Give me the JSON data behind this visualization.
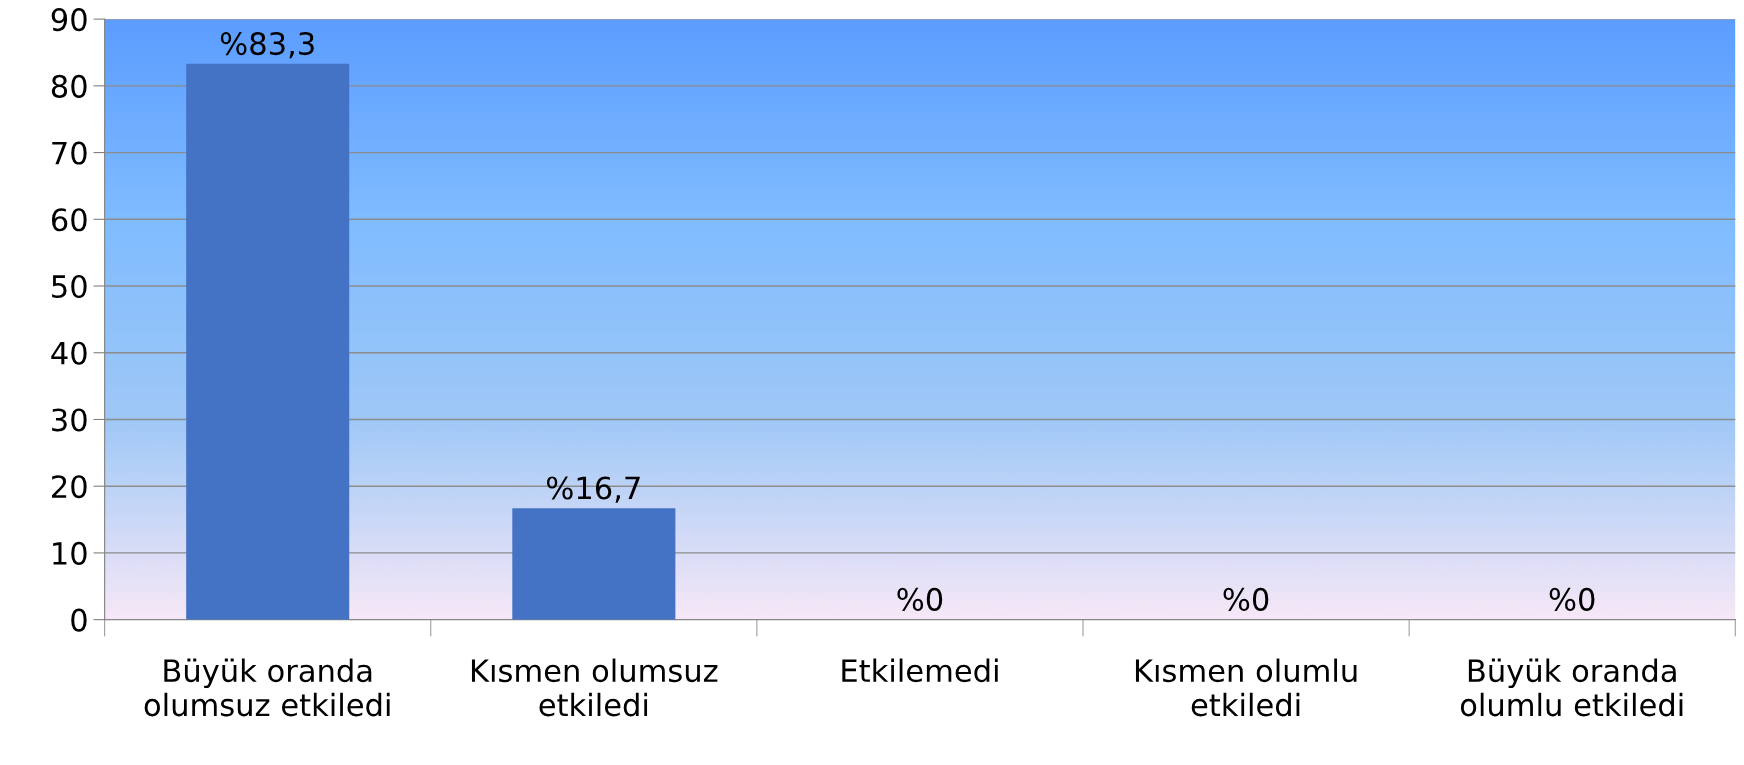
{
  "chart_data": {
    "type": "bar",
    "categories": [
      "Büyük oranda\nolumsuz etkiledi",
      "Kısmen olumsuz\netkiledi",
      "Etkilemedi",
      "Kısmen olumlu\netkiledi",
      "Büyük oranda\nolumlu etkiledi"
    ],
    "values": [
      83.3,
      16.7,
      0,
      0,
      0
    ],
    "value_labels": [
      "%83,3",
      "%16,7",
      "%0",
      "%0",
      "%0"
    ],
    "color": "#4472c4",
    "ylim": [
      0,
      90
    ],
    "yticks": [
      0,
      10,
      20,
      30,
      40,
      50,
      60,
      70,
      80,
      90
    ],
    "grid": "y",
    "legend": false
  }
}
